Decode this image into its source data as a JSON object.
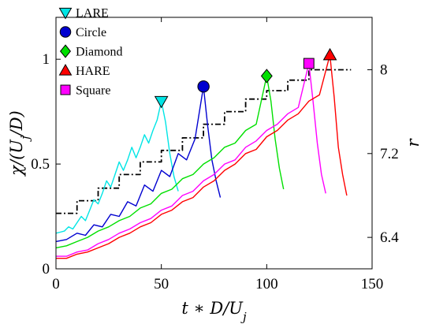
{
  "chart_data": {
    "type": "line",
    "xlabel": "t ∗ D/U_j",
    "ylabel": "χ/(U_j/D)",
    "ylabel_right": "r",
    "xlim": [
      0,
      150
    ],
    "ylim": [
      0,
      1.2
    ],
    "ylim_right": [
      6.1,
      8.5
    ],
    "xticks": [
      0,
      50,
      100,
      150
    ],
    "yticks": [
      0,
      0.5,
      1
    ],
    "yticks_right": [
      6.4,
      7.2,
      8
    ],
    "xtick_labels": [
      "0",
      "50",
      "100",
      "150"
    ],
    "ytick_labels": [
      "0",
      "0.5",
      "1"
    ],
    "ytick_labels_right": [
      "6.4",
      "7.2",
      "8"
    ],
    "grid": false,
    "legend_position": "top-left",
    "series": [
      {
        "name": "LARE",
        "color": "#00e5e5",
        "marker": "triangle-down",
        "marker_at": [
          50,
          0.8
        ],
        "points": [
          [
            0,
            0.17
          ],
          [
            2,
            0.175
          ],
          [
            4,
            0.18
          ],
          [
            6,
            0.2
          ],
          [
            8,
            0.19
          ],
          [
            10,
            0.22
          ],
          [
            12,
            0.25
          ],
          [
            14,
            0.23
          ],
          [
            16,
            0.28
          ],
          [
            18,
            0.33
          ],
          [
            20,
            0.31
          ],
          [
            22,
            0.36
          ],
          [
            24,
            0.42
          ],
          [
            26,
            0.39
          ],
          [
            28,
            0.45
          ],
          [
            30,
            0.51
          ],
          [
            32,
            0.47
          ],
          [
            34,
            0.52
          ],
          [
            36,
            0.58
          ],
          [
            38,
            0.53
          ],
          [
            40,
            0.58
          ],
          [
            42,
            0.64
          ],
          [
            44,
            0.6
          ],
          [
            46,
            0.66
          ],
          [
            48,
            0.71
          ],
          [
            50,
            0.8
          ],
          [
            52,
            0.7
          ],
          [
            54,
            0.55
          ],
          [
            56,
            0.44
          ],
          [
            58,
            0.37
          ]
        ]
      },
      {
        "name": "Circle",
        "color": "#0000d0",
        "marker": "circle",
        "marker_at": [
          70,
          0.87
        ],
        "points": [
          [
            0,
            0.13
          ],
          [
            5,
            0.14
          ],
          [
            10,
            0.17
          ],
          [
            14,
            0.16
          ],
          [
            18,
            0.21
          ],
          [
            22,
            0.2
          ],
          [
            26,
            0.26
          ],
          [
            30,
            0.25
          ],
          [
            34,
            0.32
          ],
          [
            38,
            0.3
          ],
          [
            42,
            0.4
          ],
          [
            46,
            0.37
          ],
          [
            50,
            0.47
          ],
          [
            54,
            0.44
          ],
          [
            58,
            0.55
          ],
          [
            62,
            0.52
          ],
          [
            66,
            0.62
          ],
          [
            70,
            0.87
          ],
          [
            72,
            0.68
          ],
          [
            74,
            0.52
          ],
          [
            76,
            0.42
          ],
          [
            78,
            0.34
          ]
        ]
      },
      {
        "name": "Diamond",
        "color": "#00e000",
        "marker": "diamond",
        "marker_at": [
          100,
          0.92
        ],
        "points": [
          [
            0,
            0.1
          ],
          [
            5,
            0.11
          ],
          [
            10,
            0.13
          ],
          [
            15,
            0.15
          ],
          [
            20,
            0.18
          ],
          [
            25,
            0.2
          ],
          [
            30,
            0.23
          ],
          [
            35,
            0.25
          ],
          [
            40,
            0.29
          ],
          [
            45,
            0.31
          ],
          [
            50,
            0.36
          ],
          [
            55,
            0.38
          ],
          [
            60,
            0.43
          ],
          [
            65,
            0.45
          ],
          [
            70,
            0.5
          ],
          [
            75,
            0.53
          ],
          [
            80,
            0.58
          ],
          [
            85,
            0.6
          ],
          [
            90,
            0.66
          ],
          [
            95,
            0.69
          ],
          [
            100,
            0.92
          ],
          [
            102,
            0.8
          ],
          [
            104,
            0.62
          ],
          [
            106,
            0.48
          ],
          [
            108,
            0.38
          ]
        ]
      },
      {
        "name": "HARE",
        "color": "#ff0000",
        "marker": "triangle-up",
        "marker_at": [
          130,
          1.02
        ],
        "points": [
          [
            0,
            0.05
          ],
          [
            5,
            0.05
          ],
          [
            10,
            0.07
          ],
          [
            15,
            0.08
          ],
          [
            20,
            0.1
          ],
          [
            25,
            0.12
          ],
          [
            30,
            0.15
          ],
          [
            35,
            0.17
          ],
          [
            40,
            0.2
          ],
          [
            45,
            0.22
          ],
          [
            50,
            0.26
          ],
          [
            55,
            0.28
          ],
          [
            60,
            0.32
          ],
          [
            65,
            0.34
          ],
          [
            70,
            0.39
          ],
          [
            75,
            0.42
          ],
          [
            80,
            0.47
          ],
          [
            85,
            0.5
          ],
          [
            90,
            0.55
          ],
          [
            95,
            0.57
          ],
          [
            100,
            0.63
          ],
          [
            105,
            0.66
          ],
          [
            110,
            0.71
          ],
          [
            115,
            0.74
          ],
          [
            120,
            0.8
          ],
          [
            125,
            0.83
          ],
          [
            130,
            1.02
          ],
          [
            132,
            0.82
          ],
          [
            134,
            0.58
          ],
          [
            136,
            0.45
          ],
          [
            138,
            0.35
          ]
        ]
      },
      {
        "name": "Square",
        "color": "#ff00ff",
        "marker": "square",
        "marker_at": [
          120,
          0.98
        ],
        "points": [
          [
            0,
            0.06
          ],
          [
            5,
            0.06
          ],
          [
            10,
            0.08
          ],
          [
            15,
            0.09
          ],
          [
            20,
            0.12
          ],
          [
            25,
            0.14
          ],
          [
            30,
            0.17
          ],
          [
            35,
            0.19
          ],
          [
            40,
            0.22
          ],
          [
            45,
            0.24
          ],
          [
            50,
            0.28
          ],
          [
            55,
            0.3
          ],
          [
            60,
            0.35
          ],
          [
            65,
            0.37
          ],
          [
            70,
            0.42
          ],
          [
            75,
            0.45
          ],
          [
            80,
            0.5
          ],
          [
            85,
            0.52
          ],
          [
            90,
            0.58
          ],
          [
            95,
            0.61
          ],
          [
            100,
            0.66
          ],
          [
            105,
            0.69
          ],
          [
            110,
            0.74
          ],
          [
            115,
            0.77
          ],
          [
            120,
            0.98
          ],
          [
            122,
            0.8
          ],
          [
            124,
            0.6
          ],
          [
            126,
            0.45
          ],
          [
            128,
            0.36
          ]
        ]
      },
      {
        "name": "",
        "color": "#000000",
        "style": "dash-dot",
        "axis": "right",
        "points": [
          [
            0,
            6.63
          ],
          [
            10,
            6.63
          ],
          [
            10,
            6.75
          ],
          [
            20,
            6.75
          ],
          [
            20,
            6.87
          ],
          [
            30,
            6.87
          ],
          [
            30,
            7.0
          ],
          [
            40,
            7.0
          ],
          [
            40,
            7.12
          ],
          [
            50,
            7.12
          ],
          [
            50,
            7.23
          ],
          [
            60,
            7.23
          ],
          [
            60,
            7.35
          ],
          [
            70,
            7.35
          ],
          [
            70,
            7.48
          ],
          [
            80,
            7.48
          ],
          [
            80,
            7.6
          ],
          [
            90,
            7.6
          ],
          [
            90,
            7.72
          ],
          [
            100,
            7.72
          ],
          [
            100,
            7.8
          ],
          [
            110,
            7.8
          ],
          [
            110,
            7.9
          ],
          [
            120,
            7.9
          ],
          [
            120,
            8.0
          ],
          [
            140,
            8.0
          ]
        ]
      }
    ]
  }
}
